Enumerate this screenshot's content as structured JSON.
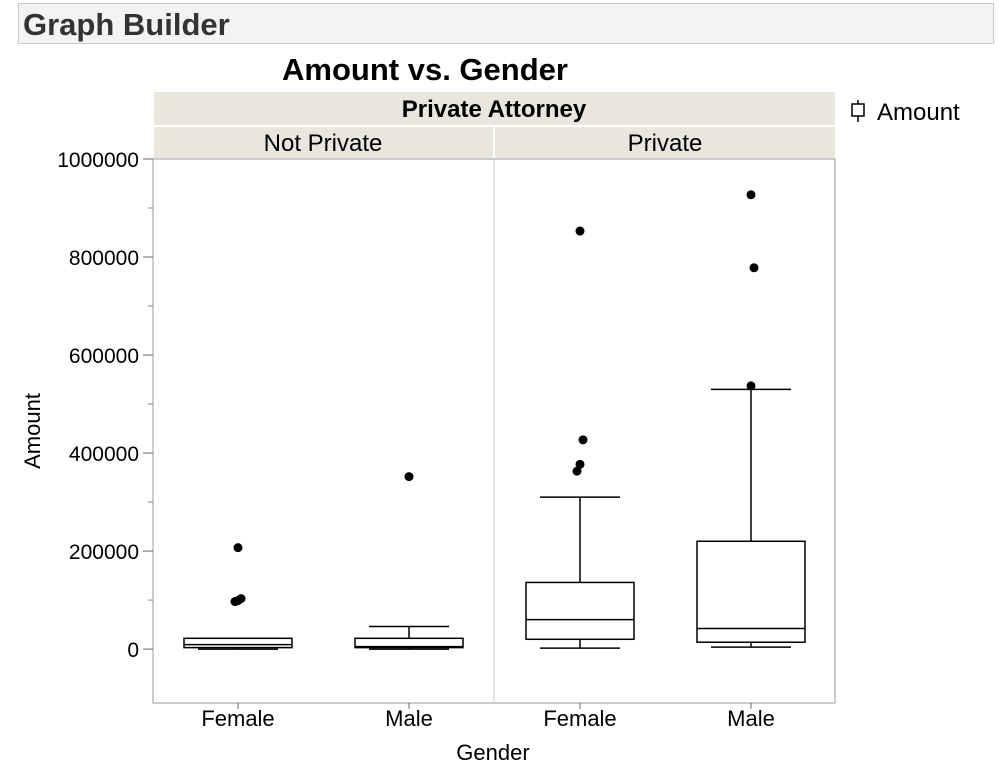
{
  "window": {
    "title": "Graph Builder"
  },
  "chart_data": {
    "type": "box",
    "title": "Amount vs. Gender",
    "xlabel": "Gender",
    "ylabel": "Amount",
    "ylim": [
      -110000,
      1000000
    ],
    "y_ticks": [
      0,
      200000,
      400000,
      600000,
      800000,
      1000000
    ],
    "y_tick_labels": [
      "0",
      "200000",
      "400000",
      "600000",
      "800000",
      "1000000"
    ],
    "facet_variable": "Private Attorney",
    "facets": [
      "Not Private",
      "Private"
    ],
    "legend": {
      "label": "Amount",
      "position": "top-right"
    },
    "groups": [
      {
        "facet": "Not Private",
        "category": "Female",
        "min": 0,
        "q1": 3000,
        "median": 9000,
        "q3": 22000,
        "max": 22000,
        "outliers": [
          207000,
          103000,
          99000,
          97000
        ]
      },
      {
        "facet": "Not Private",
        "category": "Male",
        "min": 0,
        "q1": 3000,
        "median": 5000,
        "q3": 22000,
        "max": 46000,
        "outliers": [
          352000
        ]
      },
      {
        "facet": "Private",
        "category": "Female",
        "min": 2000,
        "q1": 20000,
        "median": 60000,
        "q3": 136000,
        "max": 310000,
        "outliers": [
          853000,
          427000,
          377000,
          363000
        ]
      },
      {
        "facet": "Private",
        "category": "Male",
        "min": 4000,
        "q1": 14000,
        "median": 42000,
        "q3": 220000,
        "max": 530000,
        "outliers": [
          927000,
          778000,
          537000
        ]
      }
    ]
  }
}
